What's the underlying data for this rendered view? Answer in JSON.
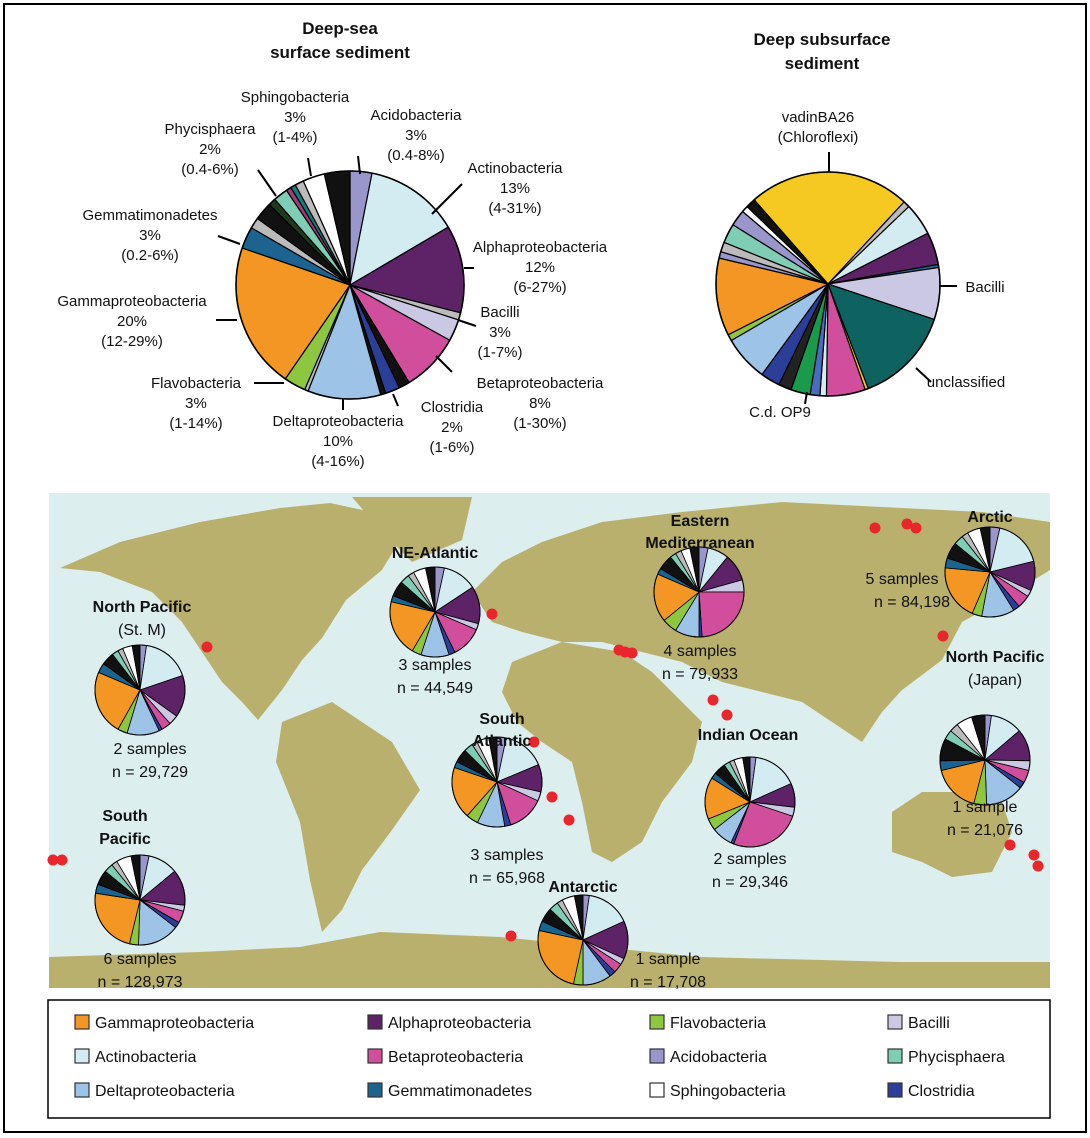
{
  "colors": {
    "Gammaproteobacteria": "#F39623",
    "Alphaproteobacteria": "#5E2266",
    "Flavobacteria": "#8DC63F",
    "Bacilli": "#CBC8E4",
    "Actinobacteria": "#D2ECF2",
    "Betaproteobacteria": "#D14E9D",
    "Acidobacteria": "#9896CB",
    "Phycisphaera": "#7ECDB4",
    "Deltaproteobacteria": "#9DC3E6",
    "Gemmatimonadetes": "#1C6390",
    "Sphingobacteria": "#FFFFFF",
    "Clostridia": "#2B3F98",
    "vadinBA26": "#F5C922",
    "unclassified": "#0E6361",
    "C.d. OP9": "#1A9B4B",
    "map_ocean": "#DDEEEF",
    "map_land": "#B8B06C",
    "site_dot": "#E8262B"
  },
  "chart_data": [
    {
      "type": "pie",
      "title": [
        "Deep-sea",
        "surface sediment"
      ],
      "slices": [
        {
          "name": "Acidobacteria",
          "value": 3,
          "label": "3%",
          "range": "(0.4-8%)"
        },
        {
          "name": "Actinobacteria",
          "value": 13,
          "label": "13%",
          "range": "(4-31%)"
        },
        {
          "name": "Alphaproteobacteria",
          "value": 12,
          "label": "12%",
          "range": "(6-27%)"
        },
        {
          "value": 1,
          "color": "#BBBBBB"
        },
        {
          "name": "Bacilli",
          "value": 3,
          "label": "3%",
          "range": "(1-7%)"
        },
        {
          "name": "Betaproteobacteria",
          "value": 8,
          "label": "8%",
          "range": "(1-30%)"
        },
        {
          "value": 1.5,
          "color": "#111111"
        },
        {
          "name": "Clostridia",
          "value": 2,
          "label": "2%",
          "range": "(1-6%)"
        },
        {
          "value": 0.7,
          "color": "#111111"
        },
        {
          "name": "Deltaproteobacteria",
          "value": 10,
          "label": "10%",
          "range": "(4-16%)"
        },
        {
          "value": 0.5,
          "color": "#BBBBBB"
        },
        {
          "name": "Flavobacteria",
          "value": 3,
          "label": "3%",
          "range": "(1-14%)"
        },
        {
          "name": "Gammaproteobacteria",
          "value": 20,
          "label": "20%",
          "range": "(12-29%)"
        },
        {
          "name": "Gemmatimonadetes",
          "value": 3,
          "label": "3%",
          "range": "(0.2-6%)"
        },
        {
          "value": 1.5,
          "color": "#BBBBBB"
        },
        {
          "value": 2.5,
          "color": "#111111"
        },
        {
          "value": 1,
          "color": "#1E3A1E"
        },
        {
          "name": "Phycisphaera",
          "value": 2,
          "label": "2%",
          "range": "(0.4-6%)"
        },
        {
          "value": 0.7,
          "color": "#A33B7A"
        },
        {
          "value": 0.7,
          "color": "#127F7F"
        },
        {
          "value": 1.2,
          "color": "#BBBBBB"
        },
        {
          "name": "Sphingobacteria",
          "value": 3,
          "label": "3%",
          "range": "(1-4%)"
        },
        {
          "value": 3.5,
          "color": "#111111"
        }
      ]
    },
    {
      "type": "pie",
      "title": [
        "Deep subsurface",
        "sediment"
      ],
      "labels": {
        "vadinBA26": [
          "vadinBA26",
          "(Chloroflexi)"
        ],
        "Bacilli": "Bacilli",
        "unclassified": "unclassified",
        "C.d. OP9": "C.d. OP9"
      },
      "slices": [
        {
          "name": "vadinBA26",
          "value": 25
        },
        {
          "value": 1,
          "color": "#BBBBBB"
        },
        {
          "name": "Actinobacteria",
          "value": 5
        },
        {
          "name": "Alphaproteobacteria",
          "value": 5
        },
        {
          "value": 0.5,
          "color": "#1C6390"
        },
        {
          "name": "Bacilli",
          "value": 8
        },
        {
          "name": "unclassified",
          "value": 15
        },
        {
          "value": 0.5,
          "color": "#F5C922"
        },
        {
          "name": "Betaproteobacteria",
          "value": 6
        },
        {
          "value": 1,
          "color": "#D2ECF2"
        },
        {
          "value": 1.5,
          "color": "#4A6CC0"
        },
        {
          "name": "C.d. OP9",
          "value": 3
        },
        {
          "value": 2,
          "color": "#222222"
        },
        {
          "name": "Clostridia",
          "value": 3
        },
        {
          "name": "Deltaproteobacteria",
          "value": 7
        },
        {
          "name": "Flavobacteria",
          "value": 1
        },
        {
          "name": "Gammaproteobacteria",
          "value": 12
        },
        {
          "value": 1,
          "color": "#9896CB"
        },
        {
          "value": 1.5,
          "color": "#BBBBBB"
        },
        {
          "name": "Phycisphaera",
          "value": 3
        },
        {
          "value": 2.5,
          "color": "#9896CB"
        },
        {
          "value": 1,
          "color": "#FFFFFF"
        },
        {
          "value": 1.5,
          "color": "#111111"
        }
      ]
    }
  ],
  "map": {
    "site_order": [
      "Acidobacteria",
      "Actinobacteria",
      "Alphaproteobacteria",
      "Bacilli",
      "Betaproteobacteria",
      "Clostridia",
      "Deltaproteobacteria",
      "Flavobacteria",
      "Gammaproteobacteria",
      "Gemmatimonadetes",
      "Phycisphaera",
      "Sphingobacteria"
    ],
    "sites": [
      {
        "name": [
          "North Pacific",
          "(St. M)"
        ],
        "samples": "2 samples",
        "n": "n = 29,729",
        "values": [
          2,
          15,
          13,
          3,
          3,
          1,
          10,
          3,
          20,
          3,
          2,
          3,
          8
        ]
      },
      {
        "name": [
          "NE-Atlantic"
        ],
        "samples": "3 samples",
        "n": "n = 44,549",
        "values": [
          3,
          11,
          12,
          2,
          10,
          2,
          9,
          3,
          18,
          2,
          3,
          4,
          10
        ]
      },
      {
        "name": [
          "Eastern",
          "Mediterranean"
        ],
        "samples": "4 samples",
        "n": "n = 79,933",
        "values": [
          3,
          7,
          9,
          4,
          22,
          1,
          8,
          5,
          16,
          2,
          2,
          3,
          10
        ]
      },
      {
        "name": [
          "Arctic"
        ],
        "samples": "5 samples",
        "n": "n = 84,198",
        "values": [
          3,
          15,
          9,
          2,
          4,
          2,
          10,
          3,
          17,
          3,
          3,
          4,
          10
        ]
      },
      {
        "name": [
          "North Pacific",
          "(Japan)"
        ],
        "samples": "1 sample",
        "n": "n = 21,076",
        "values": [
          2,
          10,
          10,
          3,
          4,
          2,
          12,
          4,
          15,
          3,
          3,
          5,
          14
        ]
      },
      {
        "name": [
          "South",
          "Atlantic"
        ],
        "samples": "3 samples",
        "n": "n = 65,968",
        "values": [
          3,
          14,
          9,
          3,
          12,
          2,
          9,
          4,
          17,
          2,
          3,
          4,
          9
        ]
      },
      {
        "name": [
          "Indian Ocean"
        ],
        "samples": "2 samples",
        "n": "n = 29,346",
        "values": [
          2,
          15,
          8,
          3,
          24,
          1,
          7,
          4,
          14,
          2,
          2,
          3,
          8
        ]
      },
      {
        "name": [
          "South",
          "Pacific"
        ],
        "samples": "6 samples",
        "n": "n = 128,973",
        "values": [
          3,
          10,
          12,
          2,
          4,
          2,
          14,
          3,
          22,
          3,
          3,
          5,
          10
        ]
      },
      {
        "name": [
          "Antarctic"
        ],
        "samples": "1 sample",
        "n": "n = 17,708",
        "values": [
          2,
          14,
          12,
          2,
          3,
          2,
          9,
          3,
          22,
          3,
          3,
          4,
          9
        ]
      }
    ]
  },
  "legend": [
    "Gammaproteobacteria",
    "Alphaproteobacteria",
    "Flavobacteria",
    "Bacilli",
    "Actinobacteria",
    "Betaproteobacteria",
    "Acidobacteria",
    "Phycisphaera",
    "Deltaproteobacteria",
    "Gemmatimonadetes",
    "Sphingobacteria",
    "Clostridia"
  ]
}
